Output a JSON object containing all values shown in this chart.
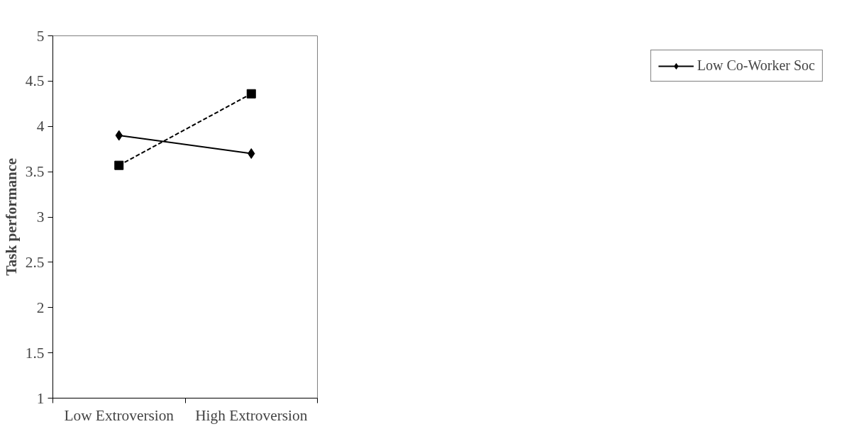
{
  "chart_data": {
    "type": "line",
    "ylabel": "Task performance",
    "categories": [
      "Low Extroversion",
      "High Extroversion"
    ],
    "series": [
      {
        "name": "Low Co-Worker Soc",
        "color": "#000000",
        "values": [
          3.9,
          3.7
        ],
        "marker": "diamond",
        "line_style": "solid"
      },
      {
        "color": "#000000",
        "values": [
          3.57,
          4.36
        ],
        "marker": "square",
        "line_style": "dashed"
      }
    ],
    "ylim": [
      1,
      5
    ],
    "yticks": [
      1,
      1.5,
      2,
      2.5,
      3,
      3.5,
      4,
      4.5,
      5
    ],
    "grid": false,
    "legend": "right"
  }
}
